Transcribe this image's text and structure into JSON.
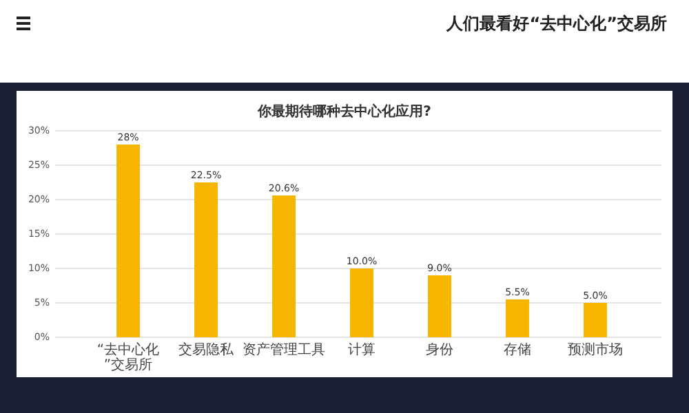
{
  "chart_data": {
    "type": "bar",
    "title": "人们最看好“去中心化”交易所",
    "subtitle": "你最期待哪种去中心化应用?",
    "categories": [
      "“去中心化”交易所",
      "交易隐私",
      "资产管理工具",
      "计算",
      "身份",
      "存储",
      "预测市场"
    ],
    "values": [
      28,
      22.5,
      20.6,
      10.0,
      9.0,
      5.5,
      5.0
    ],
    "value_labels": [
      "28%",
      "22.5%",
      "20.6%",
      "10.0%",
      "9.0%",
      "5.5%",
      "5.0%"
    ],
    "color": "#f7b500",
    "ylim": [
      0,
      30
    ],
    "yticks": [
      {
        "value": 0,
        "label": "0%"
      },
      {
        "value": 5,
        "label": "5%"
      },
      {
        "value": 10,
        "label": "10%"
      },
      {
        "value": 15,
        "label": "15%"
      },
      {
        "value": 20,
        "label": "20%"
      },
      {
        "value": 25,
        "label": "25%"
      },
      {
        "value": 30,
        "label": "30%"
      }
    ],
    "grid": "y"
  }
}
